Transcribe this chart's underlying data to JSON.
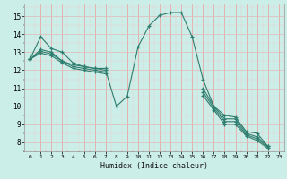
{
  "background_color": "#cceee8",
  "line_color": "#2e7d6e",
  "xlabel": "Humidex (Indice chaleur)",
  "xlim": [
    -0.5,
    23.5
  ],
  "ylim": [
    7.5,
    15.7
  ],
  "xticks": [
    0,
    1,
    2,
    3,
    4,
    5,
    6,
    7,
    8,
    9,
    10,
    11,
    12,
    13,
    14,
    15,
    16,
    17,
    18,
    19,
    20,
    21,
    22,
    23
  ],
  "yticks": [
    8,
    9,
    10,
    11,
    12,
    13,
    14,
    15
  ],
  "series": [
    [
      12.6,
      13.85,
      13.2,
      13.0,
      12.4,
      12.2,
      12.1,
      12.0,
      10.0,
      10.55,
      13.3,
      14.45,
      15.05,
      15.2,
      15.2,
      13.85,
      11.5,
      10.0,
      9.5,
      9.4,
      8.6,
      8.5,
      7.78,
      null
    ],
    [
      12.6,
      13.15,
      13.0,
      12.5,
      12.3,
      12.2,
      12.1,
      12.1,
      null,
      null,
      null,
      null,
      null,
      null,
      null,
      null,
      null,
      null,
      null,
      null,
      null,
      null,
      null,
      null
    ],
    [
      12.6,
      13.05,
      12.9,
      12.5,
      12.2,
      12.1,
      12.0,
      11.9,
      null,
      null,
      null,
      null,
      null,
      null,
      null,
      null,
      null,
      null,
      null,
      null,
      null,
      null,
      null,
      null
    ],
    [
      12.6,
      12.95,
      12.8,
      12.4,
      12.1,
      12.0,
      11.9,
      11.8,
      null,
      null,
      null,
      null,
      null,
      null,
      null,
      null,
      null,
      null,
      null,
      null,
      null,
      null,
      null,
      null
    ],
    [
      null,
      null,
      null,
      null,
      null,
      null,
      null,
      null,
      null,
      null,
      null,
      null,
      null,
      null,
      null,
      null,
      11.0,
      10.0,
      9.3,
      9.3,
      8.5,
      8.3,
      7.78,
      null
    ],
    [
      null,
      null,
      null,
      null,
      null,
      null,
      null,
      null,
      null,
      null,
      null,
      null,
      null,
      null,
      null,
      null,
      10.8,
      9.9,
      9.15,
      9.15,
      8.42,
      8.2,
      7.72,
      null
    ],
    [
      null,
      null,
      null,
      null,
      null,
      null,
      null,
      null,
      null,
      null,
      null,
      null,
      null,
      null,
      null,
      null,
      10.6,
      9.8,
      9.0,
      9.0,
      8.35,
      8.1,
      7.66,
      null
    ]
  ]
}
